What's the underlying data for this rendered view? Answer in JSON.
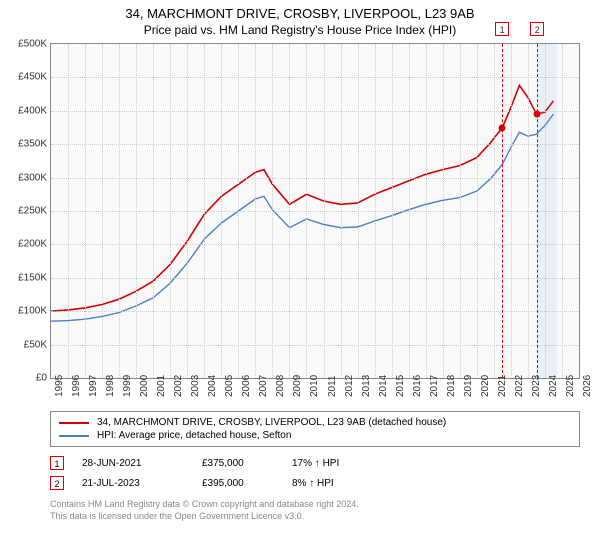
{
  "title": "34, MARCHMONT DRIVE, CROSBY, LIVERPOOL, L23 9AB",
  "subtitle": "Price paid vs. HM Land Registry's House Price Index (HPI)",
  "chart": {
    "type": "line",
    "background_color": "#fafafa",
    "border_color": "#888888",
    "grid_color": "#cccccc",
    "text_color": "#333333",
    "axis_fontsize": 10,
    "y": {
      "min": 0,
      "max": 500000,
      "step": 50000,
      "ticks": [
        0,
        50000,
        100000,
        150000,
        200000,
        250000,
        300000,
        350000,
        400000,
        450000,
        500000
      ],
      "labels": [
        "£0",
        "£50K",
        "£100K",
        "£150K",
        "£200K",
        "£250K",
        "£300K",
        "£350K",
        "£400K",
        "£450K",
        "£500K"
      ]
    },
    "x": {
      "min": 1995,
      "max": 2026,
      "ticks": [
        1995,
        1996,
        1997,
        1998,
        1999,
        2000,
        2001,
        2002,
        2003,
        2004,
        2005,
        2006,
        2007,
        2008,
        2009,
        2010,
        2011,
        2012,
        2013,
        2014,
        2015,
        2016,
        2017,
        2018,
        2019,
        2020,
        2021,
        2022,
        2023,
        2024,
        2025,
        2026
      ]
    },
    "series": [
      {
        "name": "property",
        "label": "34, MARCHMONT DRIVE, CROSBY, LIVERPOOL, L23 9AB (detached house)",
        "color": "#d40000",
        "line_width": 1.6,
        "data": [
          [
            1995,
            100000
          ],
          [
            1996,
            102000
          ],
          [
            1997,
            105000
          ],
          [
            1998,
            110000
          ],
          [
            1999,
            118000
          ],
          [
            2000,
            130000
          ],
          [
            2001,
            145000
          ],
          [
            2002,
            170000
          ],
          [
            2003,
            205000
          ],
          [
            2004,
            245000
          ],
          [
            2005,
            272000
          ],
          [
            2006,
            290000
          ],
          [
            2007,
            308000
          ],
          [
            2007.5,
            312000
          ],
          [
            2008,
            290000
          ],
          [
            2009,
            260000
          ],
          [
            2010,
            275000
          ],
          [
            2011,
            265000
          ],
          [
            2012,
            260000
          ],
          [
            2013,
            262000
          ],
          [
            2014,
            275000
          ],
          [
            2015,
            285000
          ],
          [
            2016,
            295000
          ],
          [
            2017,
            305000
          ],
          [
            2018,
            312000
          ],
          [
            2019,
            318000
          ],
          [
            2020,
            330000
          ],
          [
            2020.8,
            352000
          ],
          [
            2021.5,
            375000
          ],
          [
            2022,
            405000
          ],
          [
            2022.5,
            438000
          ],
          [
            2023,
            420000
          ],
          [
            2023.5,
            395000
          ],
          [
            2024,
            398000
          ],
          [
            2024.5,
            415000
          ]
        ]
      },
      {
        "name": "hpi",
        "label": "HPI: Average price, detached house, Sefton",
        "color": "#4a7fc4",
        "line_width": 1.4,
        "data": [
          [
            1995,
            85000
          ],
          [
            1996,
            86000
          ],
          [
            1997,
            88000
          ],
          [
            1998,
            92000
          ],
          [
            1999,
            98000
          ],
          [
            2000,
            108000
          ],
          [
            2001,
            120000
          ],
          [
            2002,
            142000
          ],
          [
            2003,
            172000
          ],
          [
            2004,
            208000
          ],
          [
            2005,
            232000
          ],
          [
            2006,
            250000
          ],
          [
            2007,
            268000
          ],
          [
            2007.5,
            272000
          ],
          [
            2008,
            252000
          ],
          [
            2009,
            225000
          ],
          [
            2010,
            238000
          ],
          [
            2011,
            230000
          ],
          [
            2012,
            225000
          ],
          [
            2013,
            226000
          ],
          [
            2014,
            235000
          ],
          [
            2015,
            243000
          ],
          [
            2016,
            252000
          ],
          [
            2017,
            260000
          ],
          [
            2018,
            266000
          ],
          [
            2019,
            270000
          ],
          [
            2020,
            280000
          ],
          [
            2020.8,
            298000
          ],
          [
            2021.5,
            320000
          ],
          [
            2022,
            345000
          ],
          [
            2022.5,
            368000
          ],
          [
            2023,
            362000
          ],
          [
            2023.5,
            365000
          ],
          [
            2024,
            378000
          ],
          [
            2024.5,
            395000
          ]
        ]
      }
    ],
    "sale_points": [
      {
        "idx": "1",
        "year": 2021.49,
        "value": 375000,
        "color": "#d40000"
      },
      {
        "idx": "2",
        "year": 2023.55,
        "value": 395000,
        "color": "#d40000"
      }
    ],
    "marker_top_y": -22,
    "highlight_band": {
      "from": 2023.55,
      "to": 2024.7,
      "color": "rgba(120,160,210,0.12)"
    }
  },
  "legend": {
    "border_color": "#888888"
  },
  "sales": [
    {
      "idx": "1",
      "date": "28-JUN-2021",
      "price": "£375,000",
      "delta": "17% ↑ HPI"
    },
    {
      "idx": "2",
      "date": "21-JUL-2023",
      "price": "£395,000",
      "delta": "8% ↑ HPI"
    }
  ],
  "footer_line1": "Contains HM Land Registry data © Crown copyright and database right 2024.",
  "footer_line2": "This data is licensed under the Open Government Licence v3.0."
}
